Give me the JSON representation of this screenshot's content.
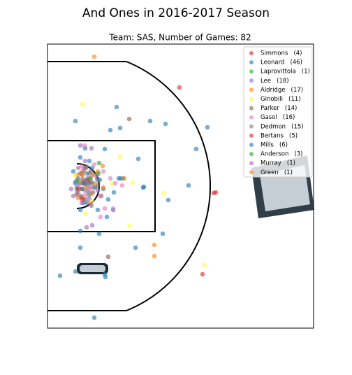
{
  "chart_data": {
    "type": "scatter",
    "title": "And Ones in 2016-2017 Season",
    "subtitle": "Team: SAS, Number of Games: 82",
    "xlim": [
      -42,
      339
    ],
    "ylim": [
      -203,
      203
    ],
    "legend": "upper right",
    "series": [
      {
        "name": "Simmons   (4)",
        "color": "#d62728",
        "x": [
          147,
          199,
          6,
          10
        ],
        "values": [
          141,
          -9,
          -16,
          4
        ]
      },
      {
        "name": "Leonard   (46)",
        "color": "#1f77b4",
        "x": [
          -2,
          57,
          48,
          62,
          105,
          127,
          187,
          171,
          40,
          12,
          88,
          160,
          131,
          96,
          123,
          84,
          32,
          5,
          -24,
          41,
          25,
          -2,
          63,
          38,
          33,
          20,
          15,
          8,
          2,
          10,
          5,
          -5,
          17,
          29,
          60,
          45,
          8,
          -2,
          22,
          18,
          52,
          5,
          12,
          0,
          26,
          43
        ],
        "values": [
          93,
          113,
          80,
          83,
          93,
          89,
          84,
          53,
          53,
          54,
          39,
          1,
          -20,
          -1,
          -68,
          -88,
          -68,
          -88,
          -128,
          -130,
          -188,
          -122,
          11,
          -4,
          9,
          6,
          18,
          -4,
          11,
          -24,
          -34,
          21,
          -9,
          11,
          11,
          -19,
          4,
          4,
          26,
          36,
          -34,
          41,
          -19,
          -2,
          -2,
          -44
        ]
      },
      {
        "name": "Laprovittola   (1)",
        "color": "#2ca02c",
        "x": [
          32
        ],
        "values": [
          33
        ]
      },
      {
        "name": "Lee   (18)",
        "color": "#9467bd",
        "x": [
          21,
          5,
          14,
          22,
          -8,
          -2,
          2,
          10,
          15,
          20,
          8,
          -5,
          25,
          18,
          2,
          12,
          30,
          7
        ],
        "values": [
          54,
          58,
          -59,
          -56,
          -4,
          6,
          -9,
          26,
          11,
          -2,
          16,
          -14,
          16,
          -19,
          26,
          36,
          -6,
          -24
        ]
      },
      {
        "name": "Aldridge   (17)",
        "color": "#ff7f0e",
        "x": [
          25,
          111,
          111,
          37,
          8,
          15,
          20,
          5,
          10,
          0,
          25,
          30,
          18,
          2,
          12,
          38,
          22
        ],
        "values": [
          185,
          -100,
          -84,
          29,
          21,
          -4,
          -12,
          6,
          -17,
          16,
          4,
          21,
          8,
          -17,
          1,
          -2,
          16
        ]
      },
      {
        "name": "Ginobili   (11)",
        "color": "#ffff33",
        "x": [
          8,
          62,
          68,
          80,
          125,
          75,
          183,
          12,
          -3,
          22,
          50
        ],
        "values": [
          117,
          42,
          11,
          5,
          -10,
          -57,
          -113,
          -39,
          16,
          -22,
          4
        ]
      },
      {
        "name": "Parker   (14)",
        "color": "#8c564b",
        "x": [
          75,
          67,
          45,
          13,
          18,
          7,
          23,
          15,
          0,
          30,
          10,
          20,
          35,
          5
        ],
        "values": [
          96,
          11,
          -101,
          26,
          4,
          -4,
          -9,
          -24,
          -12,
          1,
          8,
          21,
          -14,
          18
        ]
      },
      {
        "name": "Gasol   (16)",
        "color": "#e377c2",
        "x": [
          11,
          52,
          40,
          34,
          65,
          7,
          18,
          29,
          55,
          20,
          3,
          33,
          48,
          12,
          25,
          38
        ],
        "values": [
          58,
          -32,
          -32,
          -44,
          1,
          28,
          -4,
          16,
          4,
          -26,
          1,
          -14,
          11,
          -12,
          31,
          21
        ]
      },
      {
        "name": "Dedmon   (15)",
        "color": "#7f7f7f",
        "x": [
          21,
          8,
          15,
          12,
          20,
          3,
          18,
          25,
          10,
          6,
          30,
          0,
          17,
          22,
          14
        ],
        "values": [
          -28,
          10,
          1,
          -6,
          11,
          4,
          18,
          -2,
          21,
          -14,
          8,
          -6,
          -14,
          4,
          28
        ]
      },
      {
        "name": "Bertans   (5)",
        "color": "#d62728",
        "x": [
          180,
          196,
          8,
          15,
          2
        ],
        "values": [
          -126,
          -10,
          -19,
          8,
          -4
        ]
      },
      {
        "name": "Mills   (6)",
        "color": "#1f77b4",
        "x": [
          95,
          53,
          30,
          5,
          40,
          12
        ],
        "values": [
          -2,
          -9,
          -34,
          -64,
          -126,
          4
        ]
      },
      {
        "name": "Anderson   (3)",
        "color": "#2ca02c",
        "x": [
          31,
          0,
          18
        ],
        "values": [
          18,
          8,
          11
        ]
      },
      {
        "name": "Murray   (1)",
        "color": "#9467bd",
        "x": [
          15
        ],
        "values": [
          6
        ]
      },
      {
        "name": "Green   (1)",
        "color": "#ff7f0e",
        "x": [
          8
        ],
        "values": [
          16
        ]
      }
    ]
  }
}
